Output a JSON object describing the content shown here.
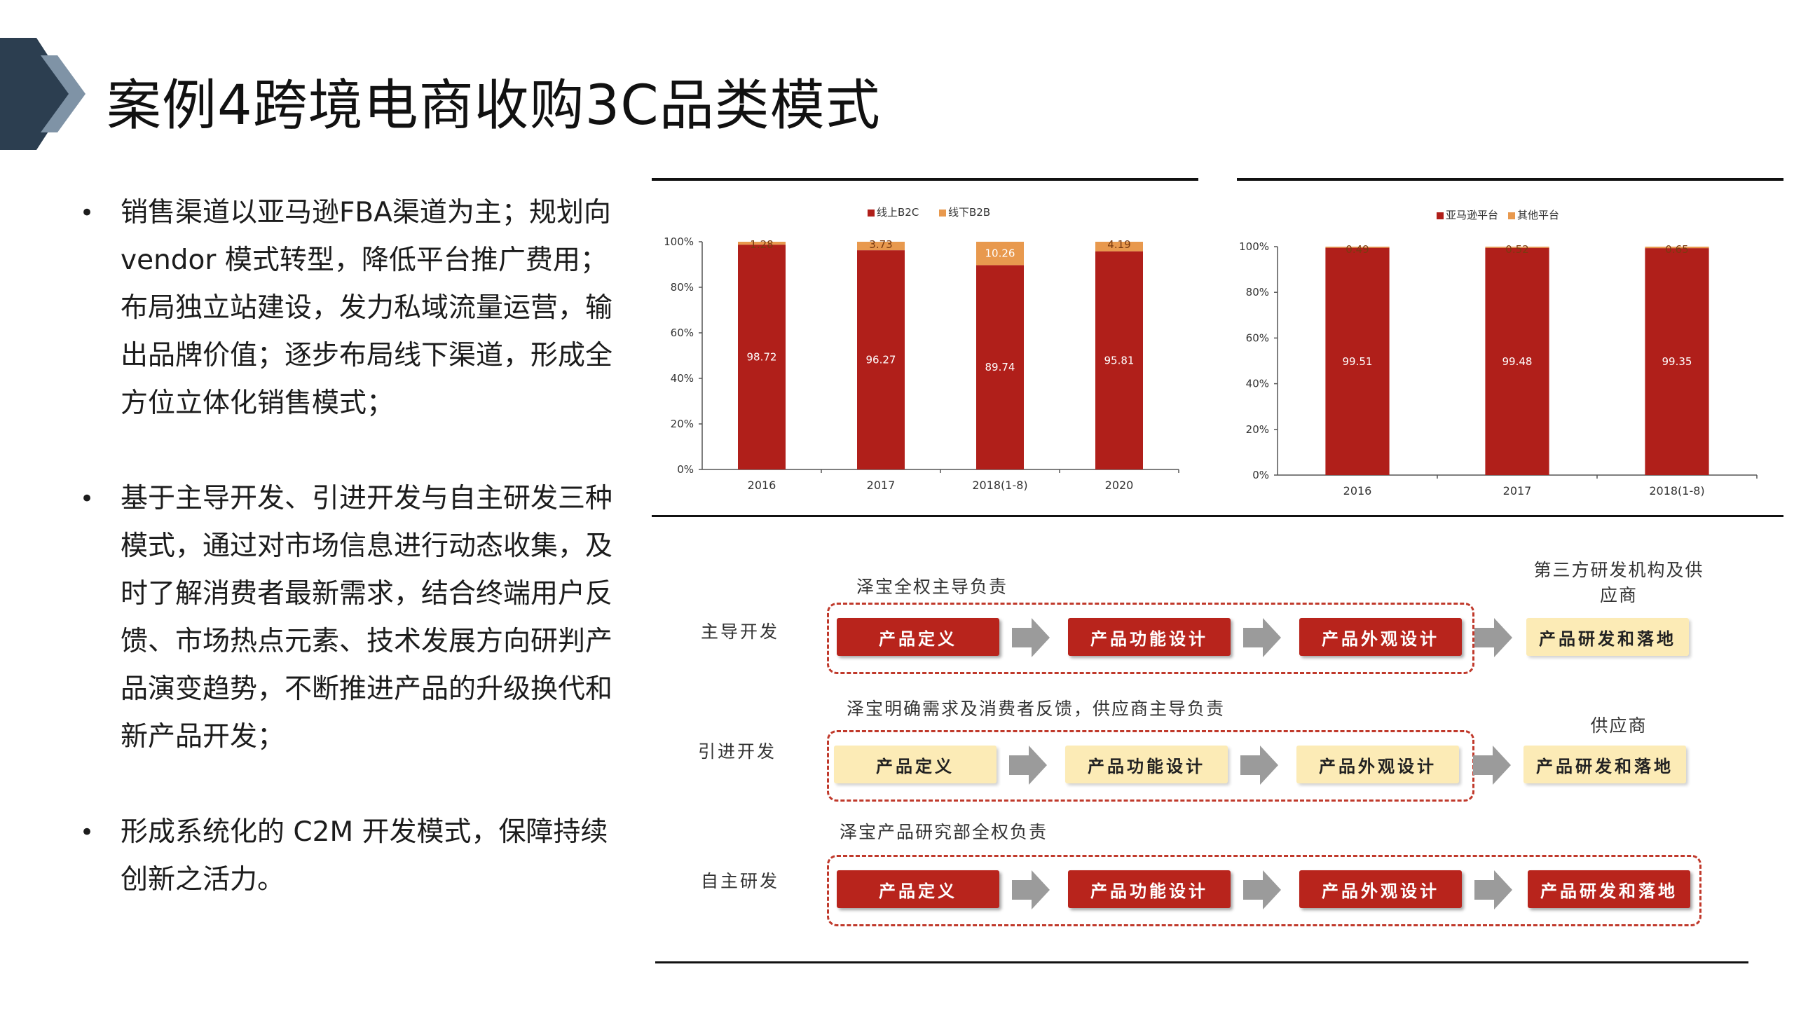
{
  "title": "案例4跨境电商收购3C品类模式",
  "bullets": [
    "销售渠道以亚马逊FBA渠道为主；规划向vendor 模式转型，降低平台推广费用；布局独立站建设，发力私域流量运营，输出品牌价值；逐步布局线下渠道，形成全方位立体化销售模式；",
    "基于主导开发、引进开发与自主研发三种模式，通过对市场信息进行动态收集，及时了解消费者最新需求，结合终端用户反馈、市场热点元素、技术发展方向研判产品演变趋势，不断推进产品的升级换代和新产品开发；",
    "形成系统化的 C2M 开发模式，保障持续创新之活力。"
  ],
  "chart_data": [
    {
      "type": "bar",
      "stacked": true,
      "categories": [
        "2016",
        "2017",
        "2018(1-8)",
        "2020"
      ],
      "series": [
        {
          "name": "线上B2C",
          "color": "#b01f1a",
          "values": [
            98.72,
            96.27,
            89.74,
            95.81
          ],
          "labels": [
            "98.72",
            "96.27",
            "89.74",
            "95.81"
          ]
        },
        {
          "name": "线下B2B",
          "color": "#e8994e",
          "values": [
            1.28,
            3.73,
            10.26,
            4.19
          ],
          "labels": [
            "1.28",
            "3.73",
            "10.26",
            "4.19"
          ]
        }
      ],
      "yticks": [
        "0%",
        "20%",
        "40%",
        "60%",
        "80%",
        "100%"
      ],
      "ylim": [
        0,
        100
      ],
      "legend": "top-center"
    },
    {
      "type": "bar",
      "stacked": true,
      "categories": [
        "2016",
        "2017",
        "2018(1-8)"
      ],
      "series": [
        {
          "name": "亚马逊平台",
          "color": "#b01f1a",
          "values": [
            99.51,
            99.48,
            99.35
          ],
          "labels": [
            "99.51",
            "99.48",
            "99.35"
          ]
        },
        {
          "name": "其他平台",
          "color": "#e8994e",
          "values": [
            0.49,
            0.52,
            0.65
          ],
          "labels": [
            "0.49",
            "0.52",
            "0.65"
          ]
        }
      ],
      "yticks": [
        "0%",
        "20%",
        "40%",
        "60%",
        "80%",
        "100%"
      ],
      "ylim": [
        0,
        100
      ],
      "legend": "top-center"
    }
  ],
  "flow": {
    "rows": [
      {
        "label": "主导开发",
        "caption": "泽宝全权主导负责",
        "steps": [
          "产品定义",
          "产品功能设计",
          "产品外观设计"
        ],
        "final": "产品研发和落地",
        "final_caption": "第三方研发机构及供应商"
      },
      {
        "label": "引进开发",
        "caption": "泽宝明确需求及消费者反馈，供应商主导负责",
        "steps": [
          "产品定义",
          "产品功能设计",
          "产品外观设计"
        ],
        "final": "产品研发和落地",
        "final_caption": "供应商"
      },
      {
        "label": "自主研发",
        "caption": "泽宝产品研究部全权负责",
        "steps": [
          "产品定义",
          "产品功能设计",
          "产品外观设计"
        ],
        "final": "产品研发和落地",
        "final_caption": ""
      }
    ]
  }
}
